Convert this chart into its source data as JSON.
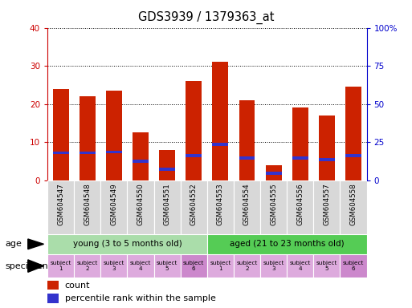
{
  "title": "GDS3939 / 1379363_at",
  "samples": [
    "GSM604547",
    "GSM604548",
    "GSM604549",
    "GSM604550",
    "GSM604551",
    "GSM604552",
    "GSM604553",
    "GSM604554",
    "GSM604555",
    "GSM604556",
    "GSM604557",
    "GSM604558"
  ],
  "counts": [
    24,
    22,
    23.5,
    12.5,
    8,
    26,
    31,
    21,
    4,
    19,
    17,
    24.5
  ],
  "percentile_bottom": [
    6.8,
    6.8,
    7.0,
    4.5,
    2.5,
    6.0,
    9.0,
    5.5,
    1.5,
    5.5,
    5.0,
    6.0
  ],
  "percentile_height": [
    0.8,
    0.8,
    0.8,
    0.8,
    0.8,
    0.8,
    0.8,
    0.8,
    0.8,
    0.8,
    0.8,
    0.8
  ],
  "ylim": [
    0,
    40
  ],
  "yticks": [
    0,
    10,
    20,
    30,
    40
  ],
  "y2ticks": [
    0,
    25,
    50,
    75,
    100
  ],
  "bar_color": "#cc2200",
  "blue_color": "#3333cc",
  "bar_width": 0.6,
  "age_groups": [
    {
      "label": "young (3 to 5 months old)",
      "start": 0,
      "end": 6,
      "color": "#aaddaa"
    },
    {
      "label": "aged (21 to 23 months old)",
      "start": 6,
      "end": 12,
      "color": "#55cc55"
    }
  ],
  "subjects": [
    "subject\n1",
    "subject\n2",
    "subject\n3",
    "subject\n4",
    "subject\n5",
    "subject\n6",
    "subject\n1",
    "subject\n2",
    "subject\n3",
    "subject\n4",
    "subject\n5",
    "subject\n6"
  ],
  "subject_colors": [
    "#ddaadd",
    "#ddaadd",
    "#ddaadd",
    "#ddaadd",
    "#ddaadd",
    "#cc88cc",
    "#ddaadd",
    "#ddaadd",
    "#ddaadd",
    "#ddaadd",
    "#ddaadd",
    "#cc88cc"
  ],
  "left_axis_color": "#cc0000",
  "right_axis_color": "#0000cc",
  "grid_color": "#444444"
}
